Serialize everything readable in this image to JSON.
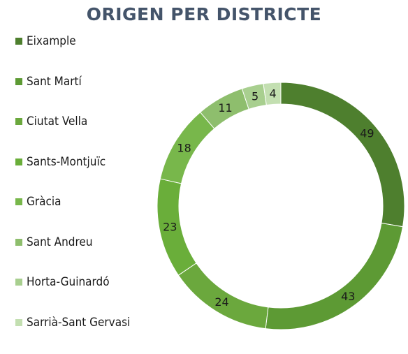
{
  "chart_data": {
    "type": "pie",
    "title": "ORIGEN PER DISTRICTE",
    "donut": true,
    "legend": "left",
    "categories": [
      "Eixample",
      "Sant Martí",
      "Ciutat Vella",
      "Sants-Montjuïc",
      "Gràcia",
      "Sant Andreu",
      "Horta-Guinardó",
      "Sarrià-Sant Gervasi"
    ],
    "values": [
      49,
      43,
      24,
      23,
      18,
      11,
      5,
      4
    ],
    "colors": [
      "#4e7f2e",
      "#5d9a34",
      "#6ba83d",
      "#6aae3a",
      "#78b74b",
      "#8ebe6d",
      "#a8cf8f",
      "#c3dfb1"
    ]
  }
}
